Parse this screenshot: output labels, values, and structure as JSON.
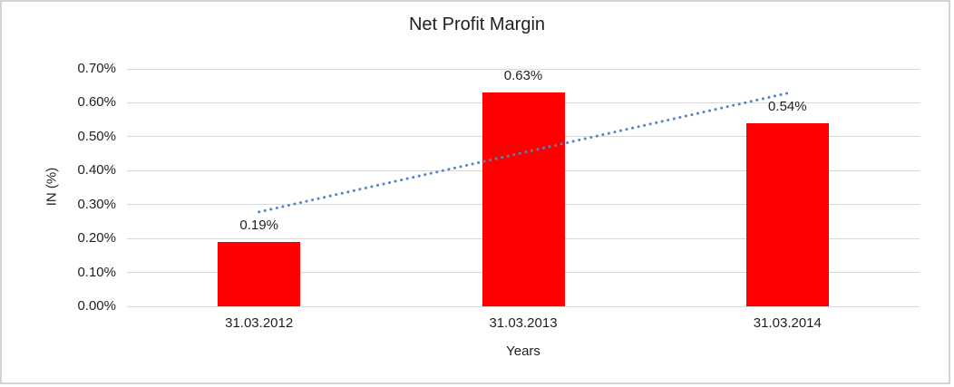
{
  "chart_data": {
    "type": "bar",
    "title": "Net Profit Margin",
    "xlabel": "Years",
    "ylabel": "IN (%)",
    "categories": [
      "31.03.2012",
      "31.03.2013",
      "31.03.2014"
    ],
    "values": [
      0.19,
      0.63,
      0.54
    ],
    "data_labels": [
      "0.19%",
      "0.63%",
      "0.54%"
    ],
    "ylim": [
      0,
      0.7
    ],
    "ytick_step": 0.1,
    "ytick_labels": [
      "0.00%",
      "0.10%",
      "0.20%",
      "0.30%",
      "0.40%",
      "0.50%",
      "0.60%",
      "0.70%"
    ],
    "grid": true,
    "legend": "none",
    "colors": {
      "bar": "#FF0000",
      "trendline": "#4E86C8",
      "gridline": "#D9D9D9",
      "axisline": "#D9D9D9",
      "text": "#1F1F1F",
      "border": "#D3D3D3"
    },
    "trendline": {
      "type": "linear",
      "dash": "dotted",
      "start_value": 0.2783,
      "end_value": 0.6283
    }
  }
}
